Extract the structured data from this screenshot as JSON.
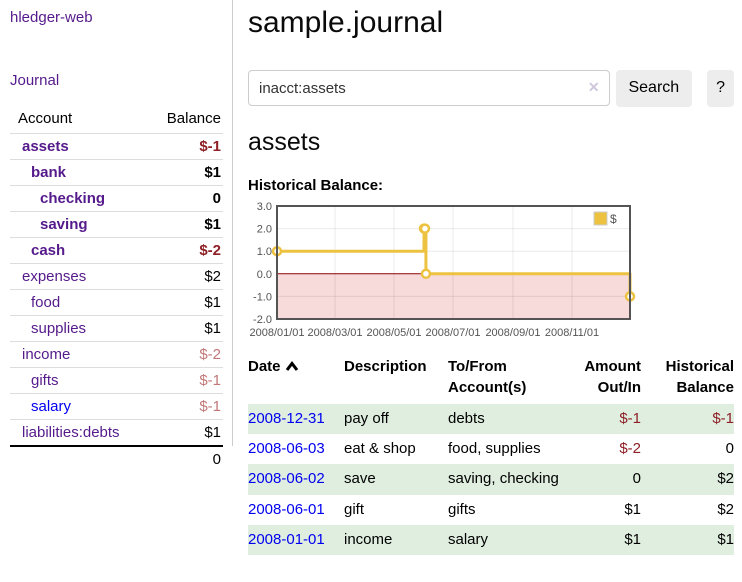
{
  "colors": {
    "link_purple": "#551a8b",
    "link_blue": "#0000ee",
    "negative_strong": "#8e1f25",
    "negative_light": "#c27878",
    "stripe_green": "#e0eee0",
    "button_gray": "#ededed",
    "series_yellow": "#edc240",
    "negative_region_pink": "#f7dada",
    "zero_line_red": "#8b0000",
    "chart_border_gray": "#545454"
  },
  "sidebar": {
    "brand": "hledger-web",
    "journal_link": "Journal",
    "accounts": {
      "header_account": "Account",
      "header_balance": "Balance",
      "rows": [
        {
          "name": "assets",
          "balance": "$-1"
        },
        {
          "name": "bank",
          "balance": "$1"
        },
        {
          "name": "checking",
          "balance": "0"
        },
        {
          "name": "saving",
          "balance": "$1"
        },
        {
          "name": "cash",
          "balance": "$-2"
        },
        {
          "name": "expenses",
          "balance": "$2"
        },
        {
          "name": "food",
          "balance": "$1"
        },
        {
          "name": "supplies",
          "balance": "$1"
        },
        {
          "name": "income",
          "balance": "$-2"
        },
        {
          "name": "gifts",
          "balance": "$-1"
        },
        {
          "name": "salary",
          "balance": "$-1"
        },
        {
          "name": "liabilities:debts",
          "balance": "$1"
        }
      ],
      "total": "0"
    }
  },
  "main": {
    "title": "sample.journal",
    "search": {
      "value": "inacct:assets",
      "clear_icon": "✕",
      "button_label": "Search",
      "help_label": "?"
    },
    "account_heading": "assets",
    "register": {
      "headers": {
        "date": "Date",
        "description": "Description",
        "accounts": "To/From Account(s)",
        "amount": "Amount Out/In",
        "balance": "Historical Balance"
      },
      "rows": [
        {
          "date": "2008-12-31",
          "description": "pay off",
          "accounts": "debts",
          "amount": "$-1",
          "balance": "$-1"
        },
        {
          "date": "2008-06-03",
          "description": "eat & shop",
          "accounts": "food, supplies",
          "amount": "$-2",
          "balance": "0"
        },
        {
          "date": "2008-06-02",
          "description": "save",
          "accounts": "saving, checking",
          "amount": "0",
          "balance": "$2"
        },
        {
          "date": "2008-06-01",
          "description": "gift",
          "accounts": "gifts",
          "amount": "$1",
          "balance": "$2"
        },
        {
          "date": "2008-01-01",
          "description": "income",
          "accounts": "salary",
          "amount": "$1",
          "balance": "$1"
        }
      ]
    }
  },
  "chart_data": {
    "type": "line",
    "title": "Historical Balance:",
    "steps": true,
    "series": [
      {
        "name": "$",
        "color": "#edc240",
        "points": [
          {
            "date": "2008-01-01",
            "value": 1
          },
          {
            "date": "2008-06-01",
            "value": 2
          },
          {
            "date": "2008-06-02",
            "value": 2
          },
          {
            "date": "2008-06-03",
            "value": 0
          },
          {
            "date": "2008-12-31",
            "value": -1
          }
        ]
      }
    ],
    "x_range": [
      "2008-01-01",
      "2008-12-31"
    ],
    "ylim": [
      -2,
      3
    ],
    "x_ticks": [
      "2008/01/01",
      "2008/03/01",
      "2008/05/01",
      "2008/07/01",
      "2008/09/01",
      "2008/11/01"
    ],
    "y_ticks": [
      3.0,
      2.0,
      1.0,
      0.0,
      -1.0,
      -2.0
    ],
    "legend": {
      "label": "$",
      "position": "top-right"
    },
    "grid": true,
    "negative_region_color": "#f7dada",
    "zero_line_color": "#8b0000"
  }
}
